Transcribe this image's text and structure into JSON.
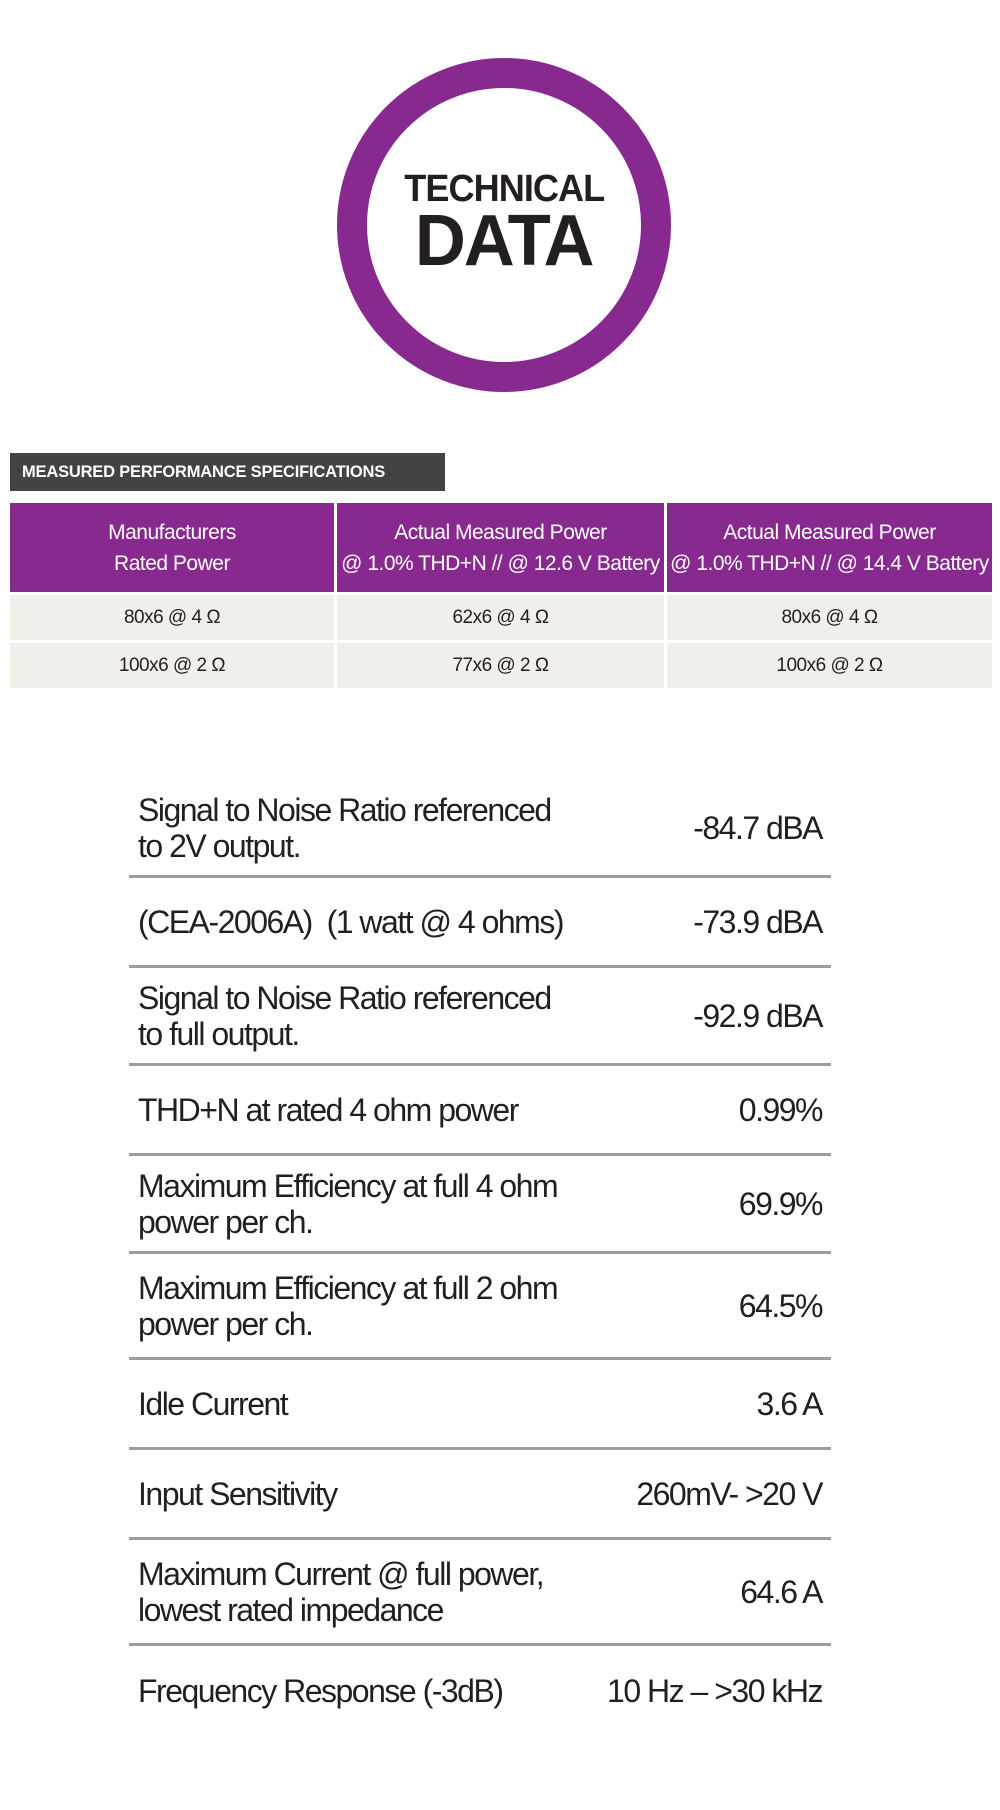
{
  "emblem": {
    "line1": "TECHNICAL",
    "line2": "DATA",
    "ring_color": "#882990"
  },
  "section_label": "MEASURED PERFORMANCE SPECIFICATIONS",
  "power_table": {
    "header_color": "#882990",
    "headers": [
      [
        "Manufacturers",
        "Rated Power"
      ],
      [
        "Actual Measured Power",
        "@ 1.0% THD+N // @ 12.6 V Battery"
      ],
      [
        "Actual Measured Power",
        "@ 1.0% THD+N // @ 14.4 V Battery"
      ]
    ],
    "rows": [
      [
        "80x6 @ 4 Ω",
        "62x6 @ 4 Ω",
        "80x6 @ 4 Ω"
      ],
      [
        "100x6 @ 2 Ω",
        "77x6 @ 2 Ω",
        "100x6 @ 2 Ω"
      ]
    ]
  },
  "specs": [
    {
      "label": "Signal to Noise Ratio referenced to 2V output.",
      "value": "-84.7 dBA"
    },
    {
      "label": "(CEA-2006A)  (1 watt @ 4 ohms)",
      "value": "-73.9 dBA"
    },
    {
      "label": "Signal to Noise Ratio referenced to full output.",
      "value": "-92.9 dBA"
    },
    {
      "label": "THD+N at rated 4 ohm power",
      "value": "0.99%"
    },
    {
      "label": "Maximum Efficiency at full 4 ohm power per ch.",
      "value": "69.9%"
    },
    {
      "label": "Maximum Efficiency at full 2 ohm power per ch.",
      "value": "64.5%"
    },
    {
      "label": "Idle Current",
      "value": "3.6 A"
    },
    {
      "label": "Input Sensitivity",
      "value": "260mV- >20 V"
    },
    {
      "label": "Maximum Current @ full power, lowest rated impedance",
      "value": "64.6 A"
    },
    {
      "label": "Frequency Response (-3dB)",
      "value": "10 Hz – >30 kHz"
    }
  ]
}
